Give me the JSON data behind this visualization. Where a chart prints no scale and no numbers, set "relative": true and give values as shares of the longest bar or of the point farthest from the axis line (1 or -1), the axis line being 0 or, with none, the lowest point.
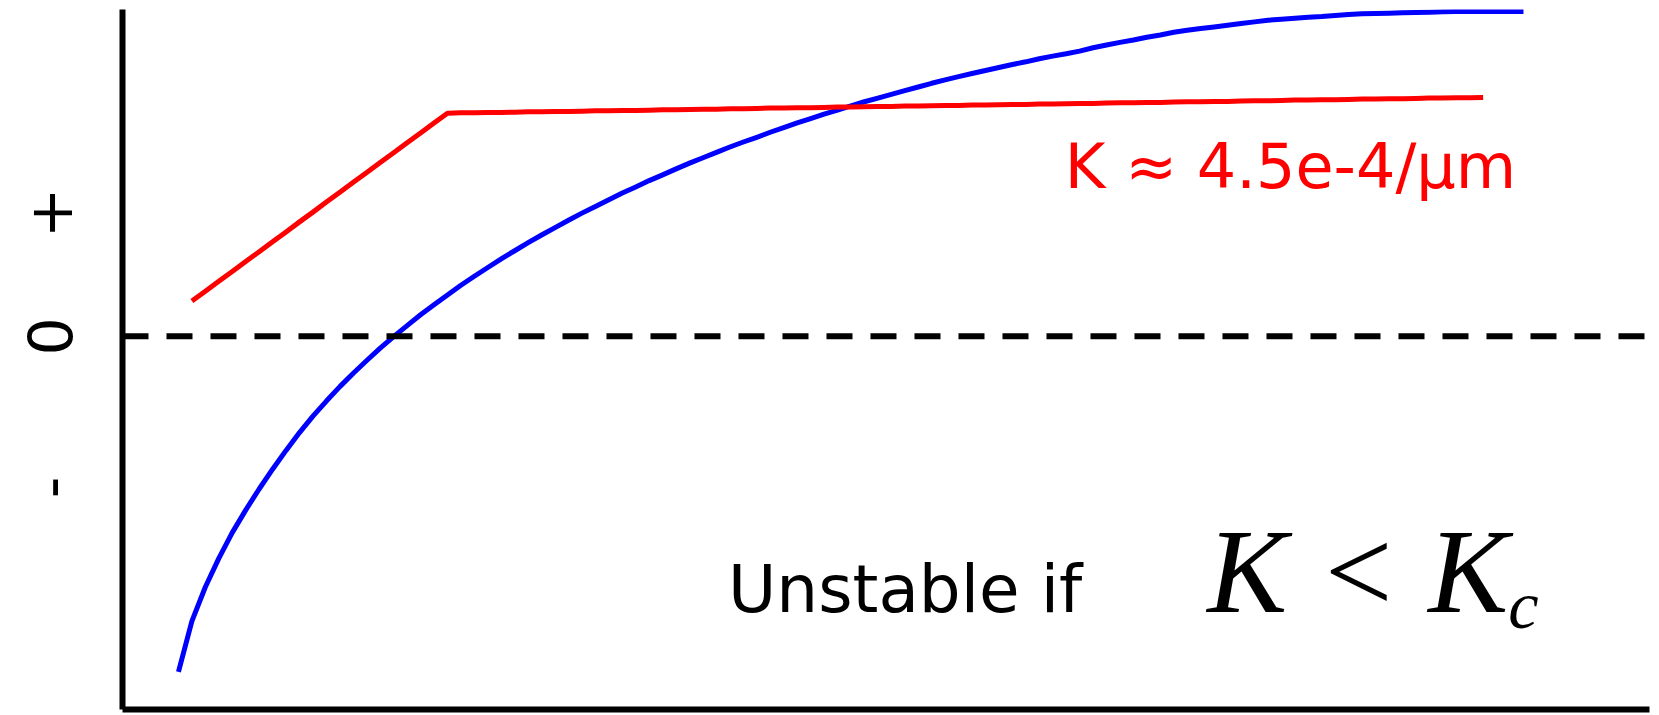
{
  "chart_data": {
    "type": "line",
    "relative": true,
    "categories": [
      null,
      null,
      null,
      null,
      null,
      null,
      null,
      null,
      null,
      null,
      null,
      null,
      null,
      null,
      null,
      null,
      null,
      null,
      null,
      null,
      null,
      null,
      null,
      null,
      null,
      null,
      null,
      null,
      null,
      null,
      null,
      null,
      null,
      null,
      null,
      null,
      null,
      null,
      null,
      null,
      null,
      null,
      null,
      null,
      null,
      null,
      null,
      null,
      null,
      null,
      null,
      null,
      null,
      null,
      null,
      null,
      null,
      null,
      null,
      null,
      null,
      null,
      null,
      null,
      null,
      null,
      null,
      null,
      null,
      null,
      null,
      null,
      null,
      null,
      null,
      null,
      null,
      null,
      null,
      null,
      null,
      null,
      null,
      null,
      null,
      null,
      null,
      null,
      null,
      null,
      null,
      null,
      null,
      null,
      null,
      null,
      null,
      null,
      null,
      null,
      null
    ],
    "series": [
      {
        "color": "#0000ff",
        "values": [
          -1.0,
          -0.849,
          -0.747,
          -0.662,
          -0.585,
          -0.518,
          -0.455,
          -0.396,
          -0.34,
          -0.287,
          -0.238,
          -0.193,
          -0.15,
          -0.11,
          -0.072,
          -0.035,
          -0.001,
          0.032,
          0.064,
          0.094,
          0.123,
          0.152,
          0.179,
          0.205,
          0.231,
          0.255,
          0.279,
          0.302,
          0.324,
          0.346,
          0.367,
          0.387,
          0.407,
          0.427,
          0.445,
          0.464,
          0.481,
          0.499,
          0.516,
          0.532,
          0.548,
          0.564,
          0.579,
          0.593,
          0.608,
          0.622,
          0.636,
          0.649,
          0.662,
          0.674,
          0.687,
          0.699,
          0.71,
          0.721,
          0.732,
          0.743,
          0.754,
          0.764,
          0.774,
          0.783,
          0.792,
          0.801,
          0.81,
          0.818,
          0.827,
          0.835,
          0.842,
          0.85,
          0.86,
          0.868,
          0.876,
          0.883,
          0.891,
          0.898,
          0.906,
          0.912,
          0.917,
          0.922,
          0.927,
          0.932,
          0.937,
          0.942,
          0.945,
          0.948,
          0.951,
          0.953,
          0.956,
          0.959,
          0.961,
          0.962,
          0.963,
          0.964,
          0.965,
          0.966,
          0.967,
          0.968,
          0.968,
          0.968,
          0.968,
          0.968,
          0.968
        ]
      },
      {
        "name": "K ≈ 4.5e-4/μm",
        "color": "#ff0000",
        "values": [
          null,
          0.105,
          0.134,
          0.164,
          0.193,
          0.223,
          0.252,
          0.282,
          0.311,
          0.341,
          0.37,
          0.4,
          0.429,
          0.459,
          0.488,
          0.518,
          0.547,
          0.577,
          0.606,
          0.636,
          0.665,
          0.666,
          0.666,
          0.667,
          0.667,
          0.668,
          0.669,
          0.669,
          0.67,
          0.67,
          0.671,
          0.672,
          0.672,
          0.673,
          0.673,
          0.674,
          0.675,
          0.675,
          0.676,
          0.677,
          0.677,
          0.678,
          0.678,
          0.679,
          0.68,
          0.68,
          0.681,
          0.681,
          0.682,
          0.683,
          0.683,
          0.684,
          0.685,
          0.685,
          0.686,
          0.686,
          0.687,
          0.688,
          0.688,
          0.689,
          0.689,
          0.69,
          0.691,
          0.691,
          0.692,
          0.692,
          0.693,
          0.694,
          0.694,
          0.695,
          0.696,
          0.696,
          0.697,
          0.697,
          0.698,
          0.699,
          0.699,
          0.7,
          0.7,
          0.701,
          0.702,
          0.702,
          0.703,
          0.704,
          0.704,
          0.705,
          0.705,
          0.706,
          0.707,
          0.707,
          0.708,
          0.708,
          0.709,
          0.71,
          0.71,
          0.711,
          0.711,
          0.712,
          null,
          null,
          null
        ]
      }
    ],
    "ref_lines": [
      {
        "axis": "y",
        "value": 0,
        "label": "0",
        "color": "#000000",
        "line_style": "dashed"
      }
    ],
    "annotations": [
      "+",
      "-",
      "Unstable if K < K$_{c}$"
    ]
  }
}
